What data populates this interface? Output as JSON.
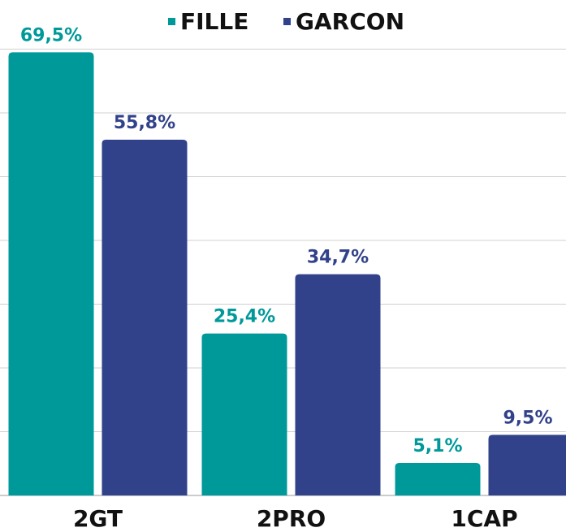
{
  "chart_data": {
    "type": "bar",
    "categories": [
      "2GT",
      "2PRO",
      "1CAP"
    ],
    "series": [
      {
        "name": "FILLE",
        "color": "#00999a",
        "values": [
          69.5,
          25.4,
          5.1
        ],
        "value_labels": [
          "69,5%",
          "25,4%",
          "5,1%"
        ]
      },
      {
        "name": "GARCON",
        "color": "#32428a",
        "values": [
          55.8,
          34.7,
          9.5
        ],
        "value_labels": [
          "55,8%",
          "34,7%",
          "9,5%"
        ]
      }
    ],
    "ylim": [
      0,
      70
    ],
    "yticks": [
      0,
      10,
      20,
      30,
      40,
      50,
      60,
      70
    ],
    "grid": true,
    "legend": "top"
  }
}
